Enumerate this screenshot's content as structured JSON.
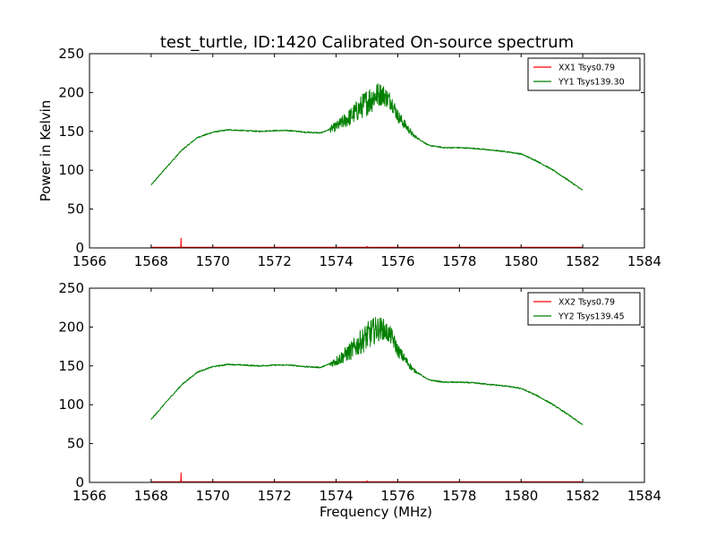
{
  "figure": {
    "title": "test_turtle, ID:1420 Calibrated On-source spectrum"
  },
  "chart_data": [
    {
      "type": "line",
      "title": "test_turtle, ID:1420 Calibrated On-source spectrum",
      "xlabel": "",
      "ylabel": "Power in Kelvin",
      "xlim": [
        1566,
        1584
      ],
      "ylim": [
        0,
        250
      ],
      "xticks": [
        1566,
        1568,
        1570,
        1572,
        1574,
        1576,
        1578,
        1580,
        1582,
        1584
      ],
      "yticks": [
        0,
        50,
        100,
        150,
        200,
        250
      ],
      "legend_position": "top-right",
      "grid": false,
      "series": [
        {
          "name": "XX1 Tsys0.79",
          "color": "#ff0000",
          "x": [
            1568.0,
            1568.96,
            1568.97,
            1568.98,
            1569.0,
            1574.98,
            1575.0,
            1575.02,
            1582.0
          ],
          "y": [
            0.8,
            0.8,
            12.5,
            0.8,
            0.8,
            0.8,
            2.0,
            0.8,
            0.8
          ]
        },
        {
          "name": "YY1 Tsys139.30",
          "color": "#008000",
          "noise_range": [
            1573.8,
            1577.0
          ],
          "noise_peak": 18,
          "x": [
            1568.0,
            1568.5,
            1569.0,
            1569.5,
            1570.0,
            1570.5,
            1571.0,
            1571.5,
            1572.0,
            1572.5,
            1573.0,
            1573.5,
            1574.0,
            1574.5,
            1575.0,
            1575.3,
            1575.5,
            1575.8,
            1576.0,
            1576.5,
            1577.0,
            1577.5,
            1578.0,
            1578.5,
            1579.0,
            1579.5,
            1580.0,
            1580.5,
            1581.0,
            1581.5,
            1582.0
          ],
          "y": [
            81,
            104,
            126,
            142,
            149,
            152,
            151,
            150,
            151,
            151,
            149,
            148,
            156,
            170,
            188,
            197,
            198,
            188,
            170,
            145,
            132,
            129,
            129,
            128,
            126,
            124,
            121,
            112,
            101,
            88,
            74
          ]
        }
      ]
    },
    {
      "type": "line",
      "title": "",
      "xlabel": "Frequency (MHz)",
      "ylabel": "",
      "xlim": [
        1566,
        1584
      ],
      "ylim": [
        0,
        250
      ],
      "xticks": [
        1566,
        1568,
        1570,
        1572,
        1574,
        1576,
        1578,
        1580,
        1582,
        1584
      ],
      "yticks": [
        0,
        50,
        100,
        150,
        200,
        250
      ],
      "legend_position": "top-right",
      "grid": false,
      "series": [
        {
          "name": "XX2 Tsys0.79",
          "color": "#ff0000",
          "x": [
            1568.0,
            1568.96,
            1568.97,
            1568.98,
            1569.0,
            1574.98,
            1575.0,
            1575.02,
            1582.0
          ],
          "y": [
            0.8,
            0.8,
            12.5,
            0.8,
            0.8,
            0.8,
            2.0,
            0.8,
            0.8
          ]
        },
        {
          "name": "YY2 Tsys139.45",
          "color": "#008000",
          "noise_range": [
            1573.8,
            1577.0
          ],
          "noise_peak": 18,
          "x": [
            1568.0,
            1568.5,
            1569.0,
            1569.5,
            1570.0,
            1570.5,
            1571.0,
            1571.5,
            1572.0,
            1572.5,
            1573.0,
            1573.5,
            1574.0,
            1574.5,
            1575.0,
            1575.3,
            1575.5,
            1575.8,
            1576.0,
            1576.5,
            1577.0,
            1577.5,
            1578.0,
            1578.5,
            1579.0,
            1579.5,
            1580.0,
            1580.5,
            1581.0,
            1581.5,
            1582.0
          ],
          "y": [
            81,
            104,
            126,
            142,
            149,
            152,
            151,
            150,
            151,
            151,
            149,
            148,
            156,
            170,
            188,
            197,
            198,
            188,
            170,
            145,
            132,
            129,
            129,
            128,
            126,
            124,
            121,
            112,
            101,
            88,
            74
          ]
        }
      ]
    }
  ]
}
